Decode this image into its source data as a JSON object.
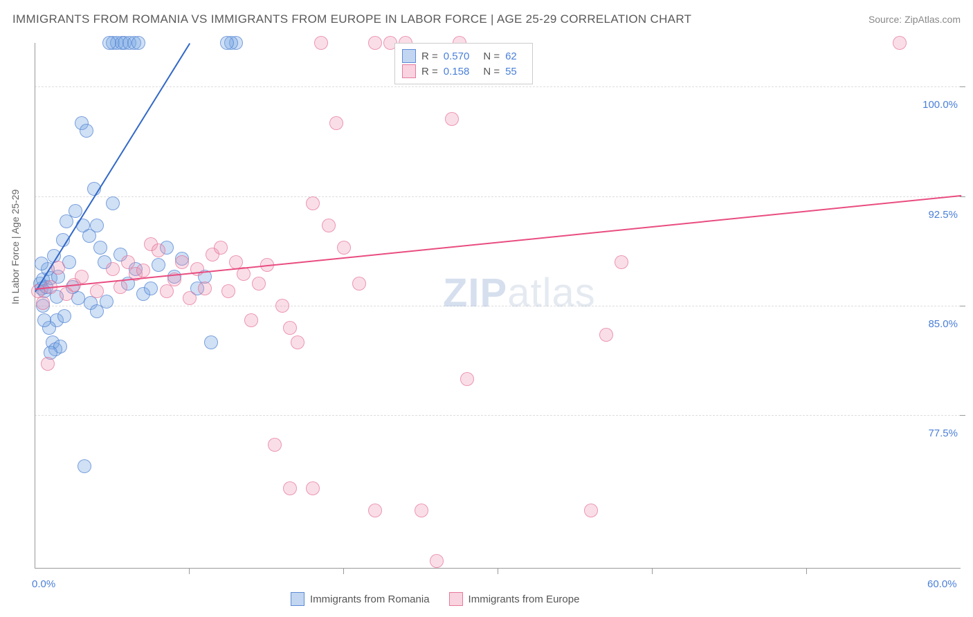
{
  "title": "IMMIGRANTS FROM ROMANIA VS IMMIGRANTS FROM EUROPE IN LABOR FORCE | AGE 25-29 CORRELATION CHART",
  "source": "Source: ZipAtlas.com",
  "y_axis_label": "In Labor Force | Age 25-29",
  "chart": {
    "type": "scatter",
    "xlim": [
      0,
      60
    ],
    "ylim": [
      67,
      103
    ],
    "x_tick_labels": [
      "0.0%",
      "60.0%"
    ],
    "y_ticks": [
      77.5,
      85.0,
      92.5,
      100.0
    ],
    "y_tick_labels": [
      "77.5%",
      "85.0%",
      "92.5%",
      "100.0%"
    ],
    "background_color": "#ffffff",
    "grid_color": "#dddddd",
    "axis_color": "#999999",
    "point_radius": 10,
    "series": [
      {
        "name": "Immigrants from Romania",
        "color": "#78a5e1",
        "border_color": "#5082d2",
        "r": "0.570",
        "n": "62",
        "trend": {
          "x1": 0,
          "y1": 86.0,
          "x2": 10,
          "y2": 103.0,
          "color": "#3268c8",
          "width": 2
        },
        "points": [
          [
            0.3,
            86.5
          ],
          [
            0.4,
            86.2
          ],
          [
            0.5,
            86.8
          ],
          [
            0.6,
            86.0
          ],
          [
            0.8,
            87.5
          ],
          [
            0.5,
            85.0
          ],
          [
            0.7,
            86.3
          ],
          [
            1.0,
            86.9
          ],
          [
            1.2,
            88.4
          ],
          [
            1.4,
            84.0
          ],
          [
            1.5,
            87.0
          ],
          [
            1.8,
            89.5
          ],
          [
            2.0,
            90.8
          ],
          [
            2.2,
            88.0
          ],
          [
            2.4,
            86.3
          ],
          [
            2.6,
            91.5
          ],
          [
            0.9,
            83.5
          ],
          [
            1.1,
            82.5
          ],
          [
            1.3,
            82.0
          ],
          [
            1.6,
            82.2
          ],
          [
            1.0,
            81.8
          ],
          [
            1.4,
            85.6
          ],
          [
            3.0,
            97.5
          ],
          [
            3.3,
            97.0
          ],
          [
            3.1,
            90.5
          ],
          [
            3.5,
            89.8
          ],
          [
            3.8,
            93.0
          ],
          [
            4.0,
            90.5
          ],
          [
            4.2,
            89.0
          ],
          [
            4.5,
            88.0
          ],
          [
            5.0,
            103.0
          ],
          [
            5.3,
            103.0
          ],
          [
            5.6,
            103.0
          ],
          [
            5.8,
            103.0
          ],
          [
            6.1,
            103.0
          ],
          [
            6.4,
            103.0
          ],
          [
            6.7,
            103.0
          ],
          [
            4.8,
            103.0
          ],
          [
            13.0,
            103.0
          ],
          [
            12.7,
            103.0
          ],
          [
            12.4,
            103.0
          ],
          [
            5.0,
            92.0
          ],
          [
            5.5,
            88.5
          ],
          [
            6.0,
            86.5
          ],
          [
            6.5,
            87.5
          ],
          [
            7.0,
            85.8
          ],
          [
            7.5,
            86.2
          ],
          [
            8.0,
            87.8
          ],
          [
            8.5,
            89.0
          ],
          [
            9.0,
            87.0
          ],
          [
            9.5,
            88.2
          ],
          [
            10.5,
            86.2
          ],
          [
            11.0,
            87.0
          ],
          [
            11.4,
            82.5
          ],
          [
            3.2,
            74.0
          ],
          [
            2.8,
            85.5
          ],
          [
            1.9,
            84.3
          ],
          [
            0.6,
            84.0
          ],
          [
            3.6,
            85.2
          ],
          [
            4.0,
            84.6
          ],
          [
            4.6,
            85.3
          ],
          [
            0.4,
            87.9
          ]
        ]
      },
      {
        "name": "Immigrants from Europe",
        "color": "#f091af",
        "border_color": "#e1648c",
        "r": "0.158",
        "n": "55",
        "trend": {
          "x1": 0,
          "y1": 86.2,
          "x2": 60,
          "y2": 92.6,
          "color": "#e94c7f",
          "width": 2
        },
        "points": [
          [
            0.2,
            86.0
          ],
          [
            0.5,
            85.2
          ],
          [
            0.8,
            81.0
          ],
          [
            1.0,
            86.3
          ],
          [
            1.5,
            87.6
          ],
          [
            2.0,
            85.8
          ],
          [
            2.5,
            86.4
          ],
          [
            3.0,
            87.0
          ],
          [
            4.0,
            86.0
          ],
          [
            5.0,
            87.5
          ],
          [
            5.5,
            86.3
          ],
          [
            6.0,
            88.0
          ],
          [
            6.5,
            87.2
          ],
          [
            7.0,
            87.4
          ],
          [
            7.5,
            89.2
          ],
          [
            8.0,
            88.8
          ],
          [
            9.0,
            86.8
          ],
          [
            9.5,
            88.0
          ],
          [
            10.0,
            85.5
          ],
          [
            10.5,
            87.5
          ],
          [
            11.0,
            86.2
          ],
          [
            11.5,
            88.5
          ],
          [
            12.0,
            89.0
          ],
          [
            12.5,
            86.0
          ],
          [
            13.0,
            88.0
          ],
          [
            13.5,
            87.2
          ],
          [
            14.5,
            86.5
          ],
          [
            15.0,
            87.8
          ],
          [
            16.0,
            85.0
          ],
          [
            16.5,
            83.5
          ],
          [
            17.0,
            82.5
          ],
          [
            18.0,
            92.0
          ],
          [
            18.5,
            103.0
          ],
          [
            19.0,
            90.5
          ],
          [
            20.0,
            89.0
          ],
          [
            21.0,
            86.5
          ],
          [
            22.0,
            103.0
          ],
          [
            23.0,
            103.0
          ],
          [
            24.0,
            103.0
          ],
          [
            15.5,
            75.5
          ],
          [
            18.0,
            72.5
          ],
          [
            22.0,
            71.0
          ],
          [
            25.0,
            71.0
          ],
          [
            36.0,
            71.0
          ],
          [
            26.0,
            67.5
          ],
          [
            19.5,
            97.5
          ],
          [
            27.0,
            97.8
          ],
          [
            28.0,
            80.0
          ],
          [
            37.0,
            83.0
          ],
          [
            38.0,
            88.0
          ],
          [
            56.0,
            103.0
          ],
          [
            16.5,
            72.5
          ],
          [
            14.0,
            84.0
          ],
          [
            8.5,
            86.0
          ],
          [
            27.5,
            103.0
          ]
        ]
      }
    ]
  },
  "watermark": {
    "zip": "ZIP",
    "atlas": "atlas"
  },
  "legend_bottom": {
    "item1": "Immigrants from Romania",
    "item2": "Immigrants from Europe"
  }
}
